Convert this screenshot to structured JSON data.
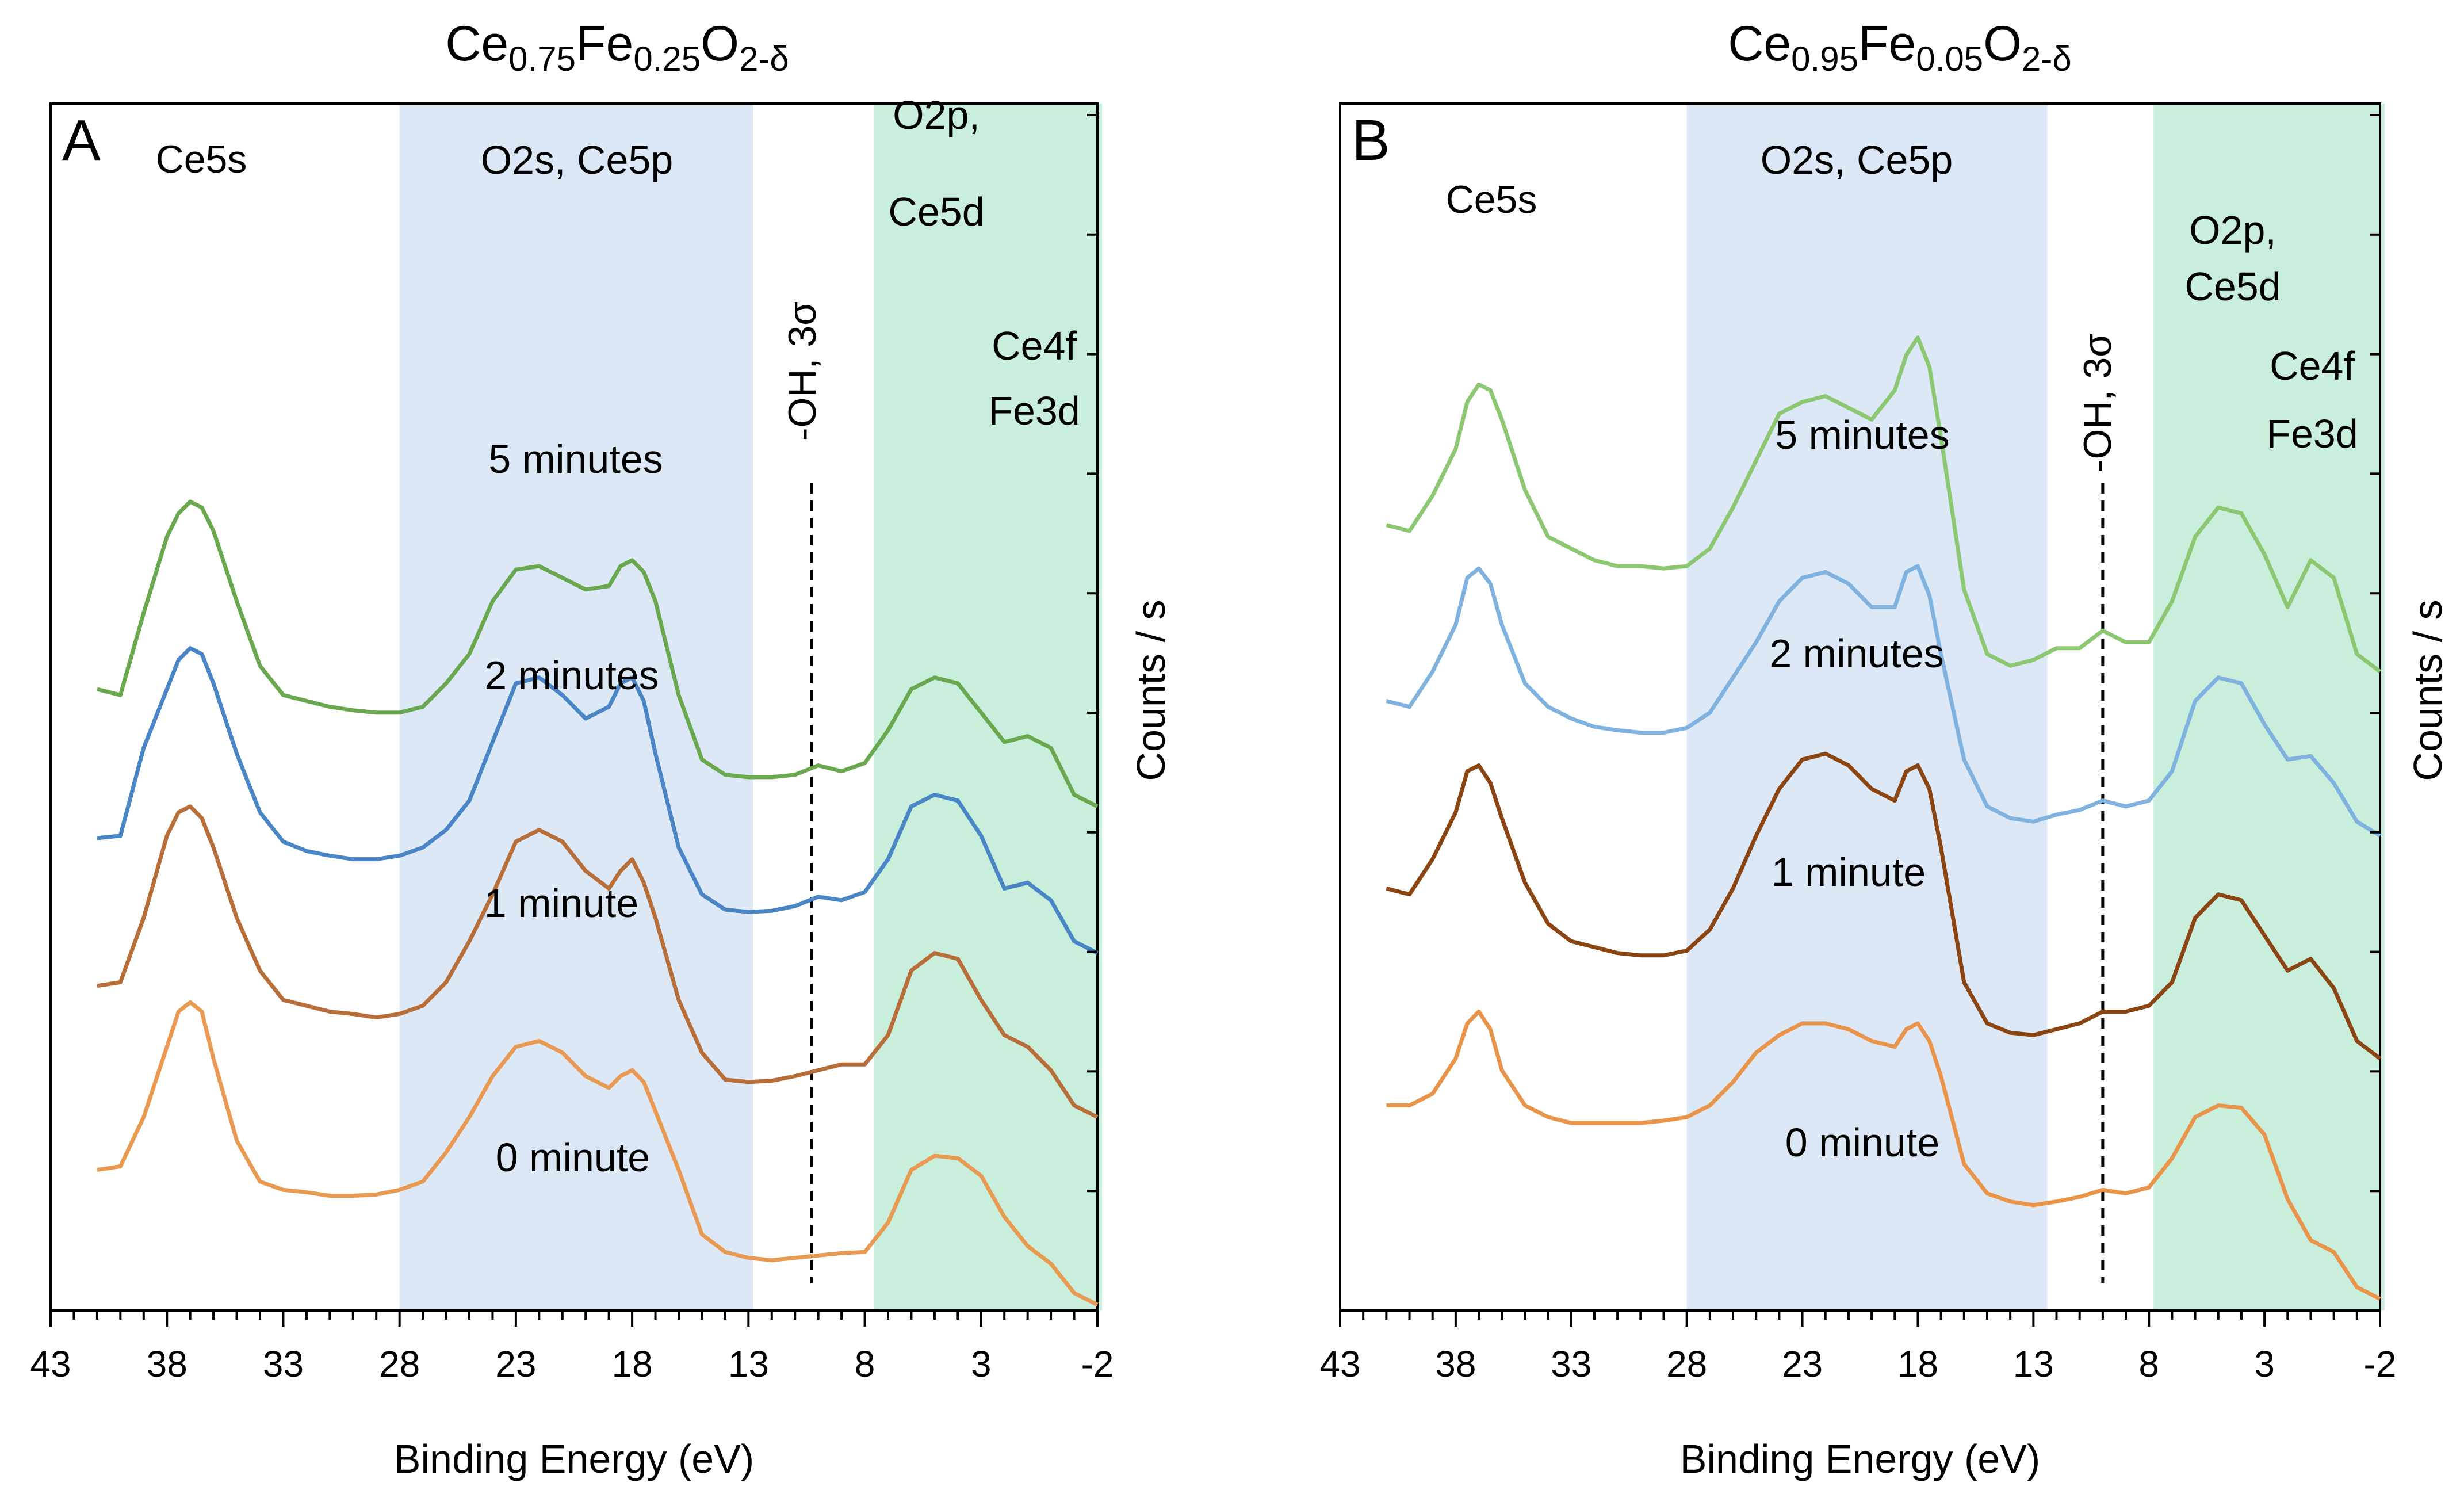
{
  "colors": {
    "blue_band": "#dce8f5",
    "green_band": "#c9eedb",
    "line_5min": "#6aa84f",
    "line_2min": "#4a86c5",
    "line_1min": "#b86e38",
    "line_0min": "#e89a52",
    "B_line_5min": "#8cc771",
    "B_line_2min": "#7fb2de",
    "B_line_1min": "#8b4513",
    "B_line_0min": "#e8944a"
  },
  "chart_data": [
    {
      "type": "line",
      "panel": "A",
      "title": {
        "base1": "Ce",
        "sub1": "0.75",
        "base2": "Fe",
        "sub2": "0.25",
        "base3": "O",
        "sub3": "2-δ"
      },
      "xlabel": "Binding Energy (eV)",
      "ylabel": "Counts / s",
      "x_reversed": true,
      "xlim": [
        43,
        -2
      ],
      "x_ticks": [
        "43",
        "38",
        "33",
        "28",
        "23",
        "18",
        "13",
        "8",
        "3",
        "-2"
      ],
      "x_tick_values": [
        43,
        38,
        33,
        28,
        23,
        18,
        13,
        8,
        3,
        -2
      ],
      "ylim": [
        0,
        10
      ],
      "y_tick_values": [
        1,
        2,
        3,
        4,
        5,
        6,
        7,
        8,
        9,
        10
      ],
      "bands": [
        {
          "from": 28,
          "to": 12.8,
          "color": "blue",
          "label": "O2s, Ce5p"
        },
        {
          "from": 7.6,
          "to": -2.2,
          "color": "green",
          "label": "O2p,\nCe5d"
        }
      ],
      "annotations": [
        "Ce5s",
        "O2s, Ce5p",
        "O2p,",
        "Ce5d",
        "Ce4f",
        "Fe3d",
        "-OH, 3σ"
      ],
      "oh_line_x": 10.3,
      "series": [
        {
          "name": "5 minutes",
          "x": [
            41,
            40,
            39,
            38,
            37.5,
            37,
            36.5,
            36,
            35,
            34,
            33,
            32,
            31,
            30,
            29,
            28,
            27,
            26,
            25,
            24,
            23,
            22,
            21,
            20,
            19,
            18.5,
            18,
            17.5,
            17,
            16,
            15,
            14,
            13,
            12,
            11,
            10,
            9,
            8,
            7,
            6,
            5,
            4,
            3,
            2,
            1,
            0,
            -1,
            -2
          ],
          "y": [
            5.25,
            5.2,
            5.9,
            6.55,
            6.75,
            6.85,
            6.8,
            6.6,
            6.0,
            5.45,
            5.2,
            5.15,
            5.1,
            5.07,
            5.05,
            5.05,
            5.1,
            5.3,
            5.55,
            6.0,
            6.27,
            6.3,
            6.2,
            6.1,
            6.13,
            6.3,
            6.35,
            6.25,
            6.0,
            5.2,
            4.65,
            4.52,
            4.5,
            4.5,
            4.52,
            4.6,
            4.55,
            4.62,
            4.9,
            5.25,
            5.35,
            5.3,
            5.05,
            4.8,
            4.85,
            4.75,
            4.35,
            4.25
          ]
        },
        {
          "name": "2 minutes",
          "x": [
            41,
            40,
            39,
            38,
            37.5,
            37,
            36.5,
            36,
            35,
            34,
            33,
            32,
            31,
            30,
            29,
            28,
            27,
            26,
            25,
            24,
            23,
            22,
            21,
            20,
            19,
            18.5,
            18,
            17.5,
            17,
            16,
            15,
            14,
            13,
            12,
            11,
            10,
            9,
            8,
            7,
            6,
            5,
            4,
            3,
            2,
            1,
            0,
            -1,
            -2
          ],
          "y": [
            3.98,
            4.0,
            4.75,
            5.25,
            5.5,
            5.6,
            5.55,
            5.3,
            4.7,
            4.2,
            3.95,
            3.87,
            3.83,
            3.8,
            3.8,
            3.83,
            3.9,
            4.05,
            4.3,
            4.8,
            5.3,
            5.35,
            5.2,
            5.0,
            5.1,
            5.3,
            5.35,
            5.15,
            4.7,
            3.9,
            3.5,
            3.37,
            3.35,
            3.36,
            3.4,
            3.48,
            3.45,
            3.52,
            3.8,
            4.25,
            4.35,
            4.3,
            4.0,
            3.55,
            3.6,
            3.45,
            3.1,
            3.0
          ]
        },
        {
          "name": "1 minute",
          "x": [
            41,
            40,
            39,
            38,
            37.5,
            37,
            36.5,
            36,
            35,
            34,
            33,
            32,
            31,
            30,
            29,
            28,
            27,
            26,
            25,
            24,
            23,
            22,
            21,
            20,
            19,
            18.5,
            18,
            17.5,
            17,
            16,
            15,
            14,
            13,
            12,
            11,
            10,
            9,
            8,
            7,
            6,
            5,
            4,
            3,
            2,
            1,
            0,
            -1,
            -2
          ],
          "y": [
            2.72,
            2.75,
            3.3,
            4.0,
            4.2,
            4.25,
            4.15,
            3.9,
            3.3,
            2.85,
            2.6,
            2.55,
            2.5,
            2.48,
            2.45,
            2.48,
            2.55,
            2.75,
            3.1,
            3.5,
            3.95,
            4.05,
            3.95,
            3.7,
            3.55,
            3.7,
            3.8,
            3.6,
            3.3,
            2.6,
            2.15,
            1.92,
            1.9,
            1.91,
            1.95,
            2.0,
            2.05,
            2.05,
            2.3,
            2.85,
            3.0,
            2.95,
            2.6,
            2.3,
            2.2,
            2.0,
            1.7,
            1.6
          ]
        },
        {
          "name": "0 minute",
          "x": [
            41,
            40,
            39,
            38,
            37.5,
            37,
            36.5,
            36,
            35,
            34,
            33,
            32,
            31,
            30,
            29,
            28,
            27,
            26,
            25,
            24,
            23,
            22,
            21,
            20,
            19,
            18.5,
            18,
            17.5,
            17,
            16,
            15,
            14,
            13,
            12,
            11,
            10,
            9,
            8,
            7,
            6,
            5,
            4,
            3,
            2,
            1,
            0,
            -1,
            -2
          ],
          "y": [
            1.15,
            1.18,
            1.6,
            2.2,
            2.5,
            2.58,
            2.5,
            2.1,
            1.4,
            1.05,
            0.98,
            0.96,
            0.93,
            0.93,
            0.94,
            0.98,
            1.05,
            1.3,
            1.6,
            1.95,
            2.2,
            2.25,
            2.15,
            1.95,
            1.85,
            1.95,
            2.0,
            1.9,
            1.65,
            1.15,
            0.6,
            0.45,
            0.4,
            0.38,
            0.4,
            0.42,
            0.44,
            0.45,
            0.7,
            1.15,
            1.27,
            1.25,
            1.1,
            0.75,
            0.5,
            0.35,
            0.1,
            0.0
          ]
        }
      ]
    },
    {
      "type": "line",
      "panel": "B",
      "title": {
        "base1": "Ce",
        "sub1": "0.95",
        "base2": "Fe",
        "sub2": "0.05",
        "base3": "O",
        "sub3": "2-δ"
      },
      "xlabel": "Binding Energy (eV)",
      "ylabel": "Counts / s",
      "x_reversed": true,
      "xlim": [
        43,
        -2
      ],
      "x_ticks": [
        "43",
        "38",
        "33",
        "28",
        "23",
        "18",
        "13",
        "8",
        "3",
        "-2"
      ],
      "x_tick_values": [
        43,
        38,
        33,
        28,
        23,
        18,
        13,
        8,
        3,
        -2
      ],
      "ylim": [
        0,
        10
      ],
      "y_tick_values": [
        1,
        2,
        3,
        4,
        5,
        6,
        7,
        8,
        9,
        10
      ],
      "bands": [
        {
          "from": 28,
          "to": 12.4,
          "color": "blue",
          "label": "O2s, Ce5p"
        },
        {
          "from": 7.8,
          "to": -2.2,
          "color": "green",
          "label": "O2p,\nCe5d"
        }
      ],
      "annotations": [
        "Ce5s",
        "O2s, Ce5p",
        "O2p,",
        "Ce5d",
        "Ce4f",
        "Fe3d",
        "-OH, 3σ"
      ],
      "oh_line_x": 10.0,
      "series": [
        {
          "name": "5 minutes",
          "x": [
            41,
            40,
            39,
            38,
            37.5,
            37,
            36.5,
            36,
            35,
            34,
            33,
            32,
            31,
            30,
            29,
            28,
            27,
            26,
            25,
            24,
            23,
            22,
            21,
            20,
            19,
            18.5,
            18,
            17.5,
            17,
            16,
            15,
            14,
            13,
            12,
            11,
            10,
            9,
            8,
            7,
            6,
            5,
            4,
            3,
            2,
            1,
            0,
            -1,
            -2
          ],
          "y": [
            6.65,
            6.6,
            6.9,
            7.3,
            7.7,
            7.85,
            7.8,
            7.55,
            6.95,
            6.55,
            6.45,
            6.35,
            6.3,
            6.3,
            6.28,
            6.3,
            6.45,
            6.8,
            7.2,
            7.6,
            7.7,
            7.75,
            7.65,
            7.55,
            7.8,
            8.1,
            8.25,
            8.0,
            7.4,
            6.1,
            5.55,
            5.45,
            5.5,
            5.6,
            5.6,
            5.75,
            5.65,
            5.65,
            6.0,
            6.55,
            6.8,
            6.75,
            6.4,
            5.95,
            6.35,
            6.2,
            5.55,
            5.4
          ]
        },
        {
          "name": "2 minutes",
          "x": [
            41,
            40,
            39,
            38,
            37.5,
            37,
            36.5,
            36,
            35,
            34,
            33,
            32,
            31,
            30,
            29,
            28,
            27,
            26,
            25,
            24,
            23,
            22,
            21,
            20,
            19,
            18.5,
            18,
            17.5,
            17,
            16,
            15,
            14,
            13,
            12,
            11,
            10,
            9,
            8,
            7,
            6,
            5,
            4,
            3,
            2,
            1,
            0,
            -1,
            -2
          ],
          "y": [
            5.15,
            5.1,
            5.4,
            5.8,
            6.2,
            6.28,
            6.15,
            5.8,
            5.3,
            5.1,
            5.0,
            4.93,
            4.9,
            4.88,
            4.88,
            4.92,
            5.05,
            5.35,
            5.65,
            6.0,
            6.2,
            6.25,
            6.15,
            5.95,
            5.95,
            6.25,
            6.3,
            6.05,
            5.55,
            4.65,
            4.25,
            4.15,
            4.12,
            4.18,
            4.22,
            4.3,
            4.25,
            4.3,
            4.55,
            5.15,
            5.35,
            5.3,
            4.95,
            4.65,
            4.68,
            4.45,
            4.12,
            4.0
          ]
        },
        {
          "name": "1 minute",
          "x": [
            41,
            40,
            39,
            38,
            37.5,
            37,
            36.5,
            36,
            35,
            34,
            33,
            32,
            31,
            30,
            29,
            28,
            27,
            26,
            25,
            24,
            23,
            22,
            21,
            20,
            19,
            18.5,
            18,
            17.5,
            17,
            16,
            15,
            14,
            13,
            12,
            11,
            10,
            9,
            8,
            7,
            6,
            5,
            4,
            3,
            2,
            1,
            0,
            -1,
            -2
          ],
          "y": [
            3.55,
            3.5,
            3.8,
            4.2,
            4.55,
            4.6,
            4.45,
            4.15,
            3.6,
            3.25,
            3.1,
            3.05,
            3.0,
            2.98,
            2.98,
            3.02,
            3.2,
            3.55,
            4.0,
            4.4,
            4.65,
            4.7,
            4.6,
            4.4,
            4.3,
            4.55,
            4.6,
            4.4,
            3.9,
            2.75,
            2.4,
            2.32,
            2.3,
            2.35,
            2.4,
            2.5,
            2.5,
            2.55,
            2.75,
            3.3,
            3.5,
            3.45,
            3.15,
            2.85,
            2.95,
            2.7,
            2.25,
            2.1
          ]
        },
        {
          "name": "0 minute",
          "x": [
            41,
            40,
            39,
            38,
            37.5,
            37,
            36.5,
            36,
            35,
            34,
            33,
            32,
            31,
            30,
            29,
            28,
            27,
            26,
            25,
            24,
            23,
            22,
            21,
            20,
            19,
            18.5,
            18,
            17.5,
            17,
            16,
            15,
            14,
            13,
            12,
            11,
            10,
            9,
            8,
            7,
            6,
            5,
            4,
            3,
            2,
            1,
            0,
            -1,
            -2
          ],
          "y": [
            1.7,
            1.7,
            1.8,
            2.1,
            2.4,
            2.5,
            2.35,
            2.0,
            1.7,
            1.6,
            1.55,
            1.55,
            1.55,
            1.55,
            1.57,
            1.6,
            1.7,
            1.9,
            2.15,
            2.3,
            2.4,
            2.4,
            2.35,
            2.25,
            2.2,
            2.35,
            2.4,
            2.25,
            1.95,
            1.2,
            0.95,
            0.88,
            0.85,
            0.88,
            0.92,
            0.98,
            0.95,
            1.0,
            1.25,
            1.6,
            1.7,
            1.68,
            1.45,
            0.9,
            0.55,
            0.45,
            0.15,
            0.05
          ]
        }
      ]
    }
  ]
}
